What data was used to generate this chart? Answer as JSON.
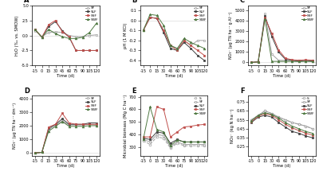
{
  "time": [
    -15,
    0,
    15,
    30,
    45,
    60,
    75,
    90,
    105,
    120
  ],
  "panel_A": {
    "title": "A",
    "ylabel": "H₂O (‰ vs. SMOW)",
    "ylim": [
      -5.0,
      5.0
    ],
    "yticks": [
      -5.0,
      -2.5,
      0.0,
      2.5,
      5.0
    ],
    "SF": [
      0.8,
      -0.2,
      0.5,
      0.6,
      0.5,
      0.0,
      -0.2,
      -0.2,
      0.0,
      0.1
    ],
    "SLF": [
      1.0,
      -0.3,
      1.5,
      2.3,
      0.8,
      -0.3,
      -2.5,
      -2.5,
      -2.5,
      -2.5
    ],
    "SSF": [
      1.0,
      -0.3,
      1.8,
      2.5,
      0.6,
      -0.2,
      -2.5,
      -2.5,
      -2.5,
      -2.5
    ],
    "SWF": [
      1.0,
      -0.3,
      1.0,
      0.3,
      -0.2,
      -0.5,
      -0.5,
      -0.3,
      0.5,
      2.0
    ]
  },
  "panel_B": {
    "title": "B",
    "ylabel": "pH (1 M KCl)",
    "ylim": [
      -0.45,
      0.15
    ],
    "yticks": [
      -0.4,
      -0.3,
      -0.2,
      -0.1,
      0.0,
      0.1
    ],
    "SF": [
      -0.1,
      0.03,
      0.02,
      -0.1,
      -0.25,
      -0.28,
      -0.2,
      -0.25,
      -0.2,
      -0.2
    ],
    "SLF": [
      -0.1,
      0.03,
      0.02,
      -0.12,
      -0.28,
      -0.3,
      -0.22,
      -0.28,
      -0.35,
      -0.4
    ],
    "SSF": [
      -0.1,
      0.03,
      0.02,
      -0.1,
      -0.25,
      -0.3,
      -0.2,
      -0.25,
      -0.3,
      -0.35
    ],
    "SWF": [
      -0.1,
      0.06,
      0.05,
      -0.05,
      -0.25,
      -0.28,
      -0.18,
      -0.22,
      -0.25,
      -0.28
    ]
  },
  "panel_C": {
    "title": "C",
    "ylabel": "NO₃⁻ (μg TN ha⁻¹ g Al⁻¹)",
    "ylim": [
      -300,
      5500
    ],
    "yticks": [
      0,
      1000,
      2000,
      3000,
      4000,
      5000
    ],
    "SF": [
      0,
      50,
      4700,
      800,
      200,
      200,
      200,
      150,
      200,
      150
    ],
    "SLF": [
      0,
      50,
      4500,
      2500,
      1000,
      300,
      200,
      150,
      200,
      150
    ],
    "SSF": [
      0,
      50,
      4300,
      2800,
      1200,
      400,
      250,
      200,
      250,
      200
    ],
    "SWF": [
      0,
      50,
      4200,
      100,
      100,
      100,
      100,
      80,
      100,
      80
    ]
  },
  "panel_D": {
    "title": "D",
    "ylabel": "NO₃⁻ (μg TN ha⁻¹ dm⁻³)",
    "ylim": [
      -200,
      4200
    ],
    "yticks": [
      0,
      1000,
      2000,
      3000,
      4000
    ],
    "SF": [
      0,
      50,
      1700,
      2050,
      2350,
      2050,
      2050,
      2050,
      2100,
      2050
    ],
    "SLF": [
      0,
      50,
      1800,
      2100,
      2500,
      2100,
      2100,
      2100,
      2200,
      2200
    ],
    "SSF": [
      0,
      50,
      1900,
      2100,
      2900,
      2200,
      2100,
      2100,
      2100,
      2100
    ],
    "SWF": [
      0,
      50,
      1600,
      1950,
      2300,
      1950,
      1950,
      1950,
      2000,
      2000
    ]
  },
  "panel_E": {
    "title": "E",
    "ylabel": "Microbial biomass (Mg C ha⁻¹)",
    "ylim": [
      230,
      710
    ],
    "yticks": [
      300,
      400,
      500,
      600,
      700
    ],
    "S": [
      350,
      320,
      380,
      370,
      290,
      330,
      310,
      310,
      310,
      310
    ],
    "SF": [
      360,
      340,
      400,
      390,
      300,
      340,
      320,
      320,
      320,
      320
    ],
    "SLF": [
      370,
      360,
      420,
      410,
      330,
      360,
      340,
      340,
      340,
      340
    ],
    "SSF": [
      380,
      380,
      620,
      600,
      380,
      420,
      460,
      465,
      475,
      480
    ],
    "SWF": [
      360,
      620,
      440,
      420,
      310,
      355,
      340,
      340,
      340,
      340
    ]
  },
  "panel_F": {
    "title": "F",
    "ylabel": "NO₃⁻ (kg N ha⁻¹)",
    "ylim": [
      0.15,
      0.82
    ],
    "yticks": [
      0.25,
      0.35,
      0.45,
      0.55,
      0.65,
      0.75
    ],
    "S": [
      0.55,
      0.6,
      0.65,
      0.62,
      0.58,
      0.55,
      0.52,
      0.5,
      0.48,
      0.45
    ],
    "SF": [
      0.55,
      0.6,
      0.65,
      0.62,
      0.58,
      0.55,
      0.52,
      0.5,
      0.48,
      0.45
    ],
    "SLF": [
      0.52,
      0.58,
      0.6,
      0.58,
      0.52,
      0.47,
      0.42,
      0.4,
      0.37,
      0.35
    ],
    "SSF": [
      0.53,
      0.59,
      0.62,
      0.6,
      0.55,
      0.5,
      0.46,
      0.43,
      0.4,
      0.38
    ],
    "SWF": [
      0.54,
      0.6,
      0.63,
      0.61,
      0.57,
      0.52,
      0.48,
      0.45,
      0.42,
      0.4
    ]
  },
  "colors": {
    "SF": "#a0a0a0",
    "SLF": "#404040",
    "SSF": "#c0504d",
    "SWF": "#4f7942",
    "S": "#a0a0a0"
  },
  "linestyles": {
    "SF": "-",
    "SLF": "-",
    "SSF": "-",
    "SWF": "-",
    "S": "--"
  },
  "markers": {
    "SF": "s",
    "SLF": "s",
    "SSF": "s",
    "SWF": "^",
    "S": "o"
  },
  "markerfacecolors": {
    "SF": "white",
    "SLF": "#404040",
    "SSF": "#c0504d",
    "SWF": "#4f7942",
    "S": "white"
  }
}
